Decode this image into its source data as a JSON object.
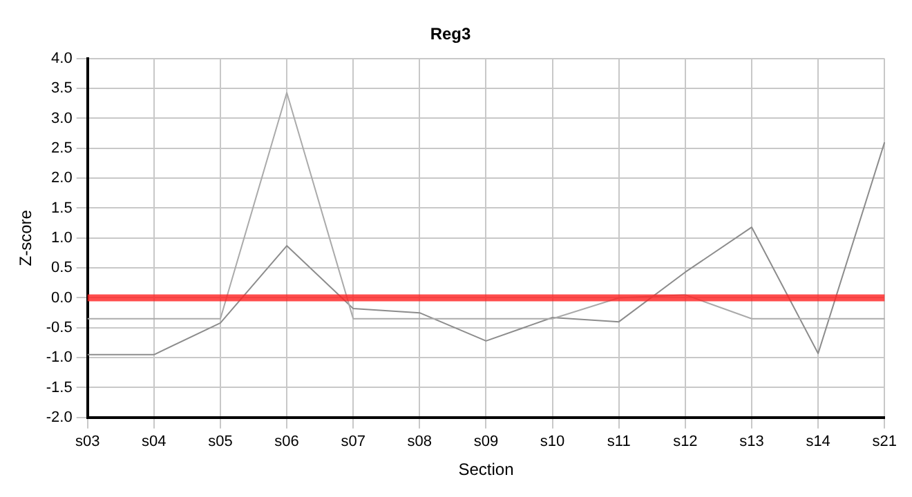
{
  "chart_data": {
    "type": "line",
    "title": "Reg3",
    "xlabel": "Section",
    "ylabel": "Z-score",
    "categories": [
      "s03",
      "s04",
      "s05",
      "s06",
      "s07",
      "s08",
      "s09",
      "s10",
      "s11",
      "s12",
      "s13",
      "s14",
      "s21"
    ],
    "series": [
      {
        "color": "#aaaaaa",
        "values": [
          -0.35,
          -0.35,
          -0.35,
          3.43,
          -0.35,
          -0.35,
          -0.35,
          -0.35,
          0.0,
          0.05,
          -0.35,
          -0.35,
          -0.35
        ]
      },
      {
        "color": "#8c8c8c",
        "values": [
          -0.95,
          -0.95,
          -0.42,
          0.87,
          -0.18,
          -0.25,
          -0.72,
          -0.33,
          -0.4,
          0.43,
          1.18,
          -0.93,
          2.6
        ]
      }
    ],
    "ylim": [
      -2,
      4
    ],
    "yticks": [
      {
        "value": -2,
        "label": "-2.0"
      },
      {
        "value": -1.5,
        "label": "-1.5"
      },
      {
        "value": -1,
        "label": "-1.0"
      },
      {
        "value": -0.5,
        "label": "-0.5"
      },
      {
        "value": 0,
        "label": "0.0"
      },
      {
        "value": 0.5,
        "label": "0.5"
      },
      {
        "value": 1,
        "label": "1.0"
      },
      {
        "value": 1.5,
        "label": "1.5"
      },
      {
        "value": 2,
        "label": "2.0"
      },
      {
        "value": 2.5,
        "label": "2.5"
      },
      {
        "value": 3,
        "label": "3.0"
      },
      {
        "value": 3.5,
        "label": "3.5"
      },
      {
        "value": 4,
        "label": "4.0"
      }
    ],
    "ref_lines": [
      {
        "axis": "y",
        "value": 0,
        "color": "#ff2020"
      }
    ],
    "grid": true,
    "legend": false,
    "marker": "none",
    "line_style": "solid"
  }
}
